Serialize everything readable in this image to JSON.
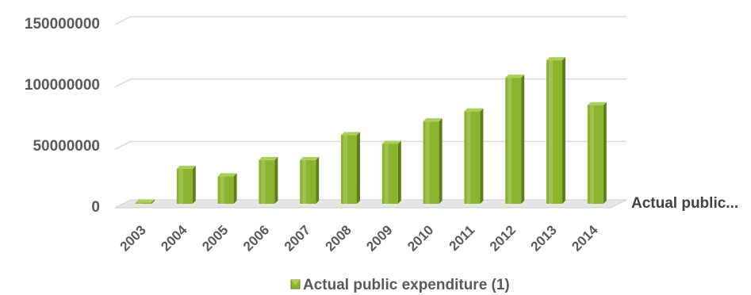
{
  "chart_data": {
    "type": "bar",
    "title": "",
    "xlabel": "",
    "ylabel": "",
    "categories": [
      "2003",
      "2004",
      "2005",
      "2006",
      "2007",
      "2008",
      "2009",
      "2010",
      "2011",
      "2012",
      "2013",
      "2014"
    ],
    "series": [
      {
        "name": "Actual public expenditure (1)",
        "values": [
          1000000,
          28000000,
          22000000,
          35000000,
          35000000,
          55000000,
          48000000,
          66000000,
          74000000,
          101000000,
          115000000,
          79000000
        ]
      }
    ],
    "ylim": [
      0,
      150000000
    ],
    "yticks": [
      "0",
      "50000000",
      "100000000",
      "150000000"
    ],
    "depth_axis_label": "Actual public...",
    "legend": {
      "position": "bottom",
      "label": "Actual public expenditure (1)"
    },
    "grid": true,
    "colors": {
      "bar_front": "#8ab42e",
      "bar_top": "#a9cf54",
      "bar_side": "#5d7f17",
      "grid": "#d9d9d9",
      "floor": "#e6e6e6"
    }
  }
}
